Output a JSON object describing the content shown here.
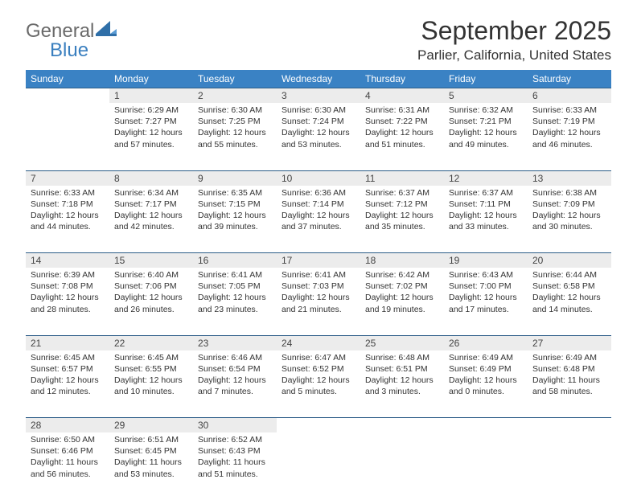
{
  "logo": {
    "text1": "General",
    "text2": "Blue"
  },
  "title": "September 2025",
  "location": "Parlier, California, United States",
  "colors": {
    "header_bg": "#3a82c4",
    "header_text": "#ffffff",
    "daynum_bg": "#ececec",
    "row_border": "#2b5c87",
    "logo_gray": "#6a6a6a",
    "logo_blue": "#3a7fbf",
    "body_text": "#333333"
  },
  "dayNames": [
    "Sunday",
    "Monday",
    "Tuesday",
    "Wednesday",
    "Thursday",
    "Friday",
    "Saturday"
  ],
  "weeks": [
    [
      null,
      {
        "num": "1",
        "sunrise": "6:29 AM",
        "sunset": "7:27 PM",
        "daylight": "12 hours and 57 minutes."
      },
      {
        "num": "2",
        "sunrise": "6:30 AM",
        "sunset": "7:25 PM",
        "daylight": "12 hours and 55 minutes."
      },
      {
        "num": "3",
        "sunrise": "6:30 AM",
        "sunset": "7:24 PM",
        "daylight": "12 hours and 53 minutes."
      },
      {
        "num": "4",
        "sunrise": "6:31 AM",
        "sunset": "7:22 PM",
        "daylight": "12 hours and 51 minutes."
      },
      {
        "num": "5",
        "sunrise": "6:32 AM",
        "sunset": "7:21 PM",
        "daylight": "12 hours and 49 minutes."
      },
      {
        "num": "6",
        "sunrise": "6:33 AM",
        "sunset": "7:19 PM",
        "daylight": "12 hours and 46 minutes."
      }
    ],
    [
      {
        "num": "7",
        "sunrise": "6:33 AM",
        "sunset": "7:18 PM",
        "daylight": "12 hours and 44 minutes."
      },
      {
        "num": "8",
        "sunrise": "6:34 AM",
        "sunset": "7:17 PM",
        "daylight": "12 hours and 42 minutes."
      },
      {
        "num": "9",
        "sunrise": "6:35 AM",
        "sunset": "7:15 PM",
        "daylight": "12 hours and 39 minutes."
      },
      {
        "num": "10",
        "sunrise": "6:36 AM",
        "sunset": "7:14 PM",
        "daylight": "12 hours and 37 minutes."
      },
      {
        "num": "11",
        "sunrise": "6:37 AM",
        "sunset": "7:12 PM",
        "daylight": "12 hours and 35 minutes."
      },
      {
        "num": "12",
        "sunrise": "6:37 AM",
        "sunset": "7:11 PM",
        "daylight": "12 hours and 33 minutes."
      },
      {
        "num": "13",
        "sunrise": "6:38 AM",
        "sunset": "7:09 PM",
        "daylight": "12 hours and 30 minutes."
      }
    ],
    [
      {
        "num": "14",
        "sunrise": "6:39 AM",
        "sunset": "7:08 PM",
        "daylight": "12 hours and 28 minutes."
      },
      {
        "num": "15",
        "sunrise": "6:40 AM",
        "sunset": "7:06 PM",
        "daylight": "12 hours and 26 minutes."
      },
      {
        "num": "16",
        "sunrise": "6:41 AM",
        "sunset": "7:05 PM",
        "daylight": "12 hours and 23 minutes."
      },
      {
        "num": "17",
        "sunrise": "6:41 AM",
        "sunset": "7:03 PM",
        "daylight": "12 hours and 21 minutes."
      },
      {
        "num": "18",
        "sunrise": "6:42 AM",
        "sunset": "7:02 PM",
        "daylight": "12 hours and 19 minutes."
      },
      {
        "num": "19",
        "sunrise": "6:43 AM",
        "sunset": "7:00 PM",
        "daylight": "12 hours and 17 minutes."
      },
      {
        "num": "20",
        "sunrise": "6:44 AM",
        "sunset": "6:58 PM",
        "daylight": "12 hours and 14 minutes."
      }
    ],
    [
      {
        "num": "21",
        "sunrise": "6:45 AM",
        "sunset": "6:57 PM",
        "daylight": "12 hours and 12 minutes."
      },
      {
        "num": "22",
        "sunrise": "6:45 AM",
        "sunset": "6:55 PM",
        "daylight": "12 hours and 10 minutes."
      },
      {
        "num": "23",
        "sunrise": "6:46 AM",
        "sunset": "6:54 PM",
        "daylight": "12 hours and 7 minutes."
      },
      {
        "num": "24",
        "sunrise": "6:47 AM",
        "sunset": "6:52 PM",
        "daylight": "12 hours and 5 minutes."
      },
      {
        "num": "25",
        "sunrise": "6:48 AM",
        "sunset": "6:51 PM",
        "daylight": "12 hours and 3 minutes."
      },
      {
        "num": "26",
        "sunrise": "6:49 AM",
        "sunset": "6:49 PM",
        "daylight": "12 hours and 0 minutes."
      },
      {
        "num": "27",
        "sunrise": "6:49 AM",
        "sunset": "6:48 PM",
        "daylight": "11 hours and 58 minutes."
      }
    ],
    [
      {
        "num": "28",
        "sunrise": "6:50 AM",
        "sunset": "6:46 PM",
        "daylight": "11 hours and 56 minutes."
      },
      {
        "num": "29",
        "sunrise": "6:51 AM",
        "sunset": "6:45 PM",
        "daylight": "11 hours and 53 minutes."
      },
      {
        "num": "30",
        "sunrise": "6:52 AM",
        "sunset": "6:43 PM",
        "daylight": "11 hours and 51 minutes."
      },
      null,
      null,
      null,
      null
    ]
  ],
  "labels": {
    "sunrise": "Sunrise:",
    "sunset": "Sunset:",
    "daylight": "Daylight:"
  }
}
